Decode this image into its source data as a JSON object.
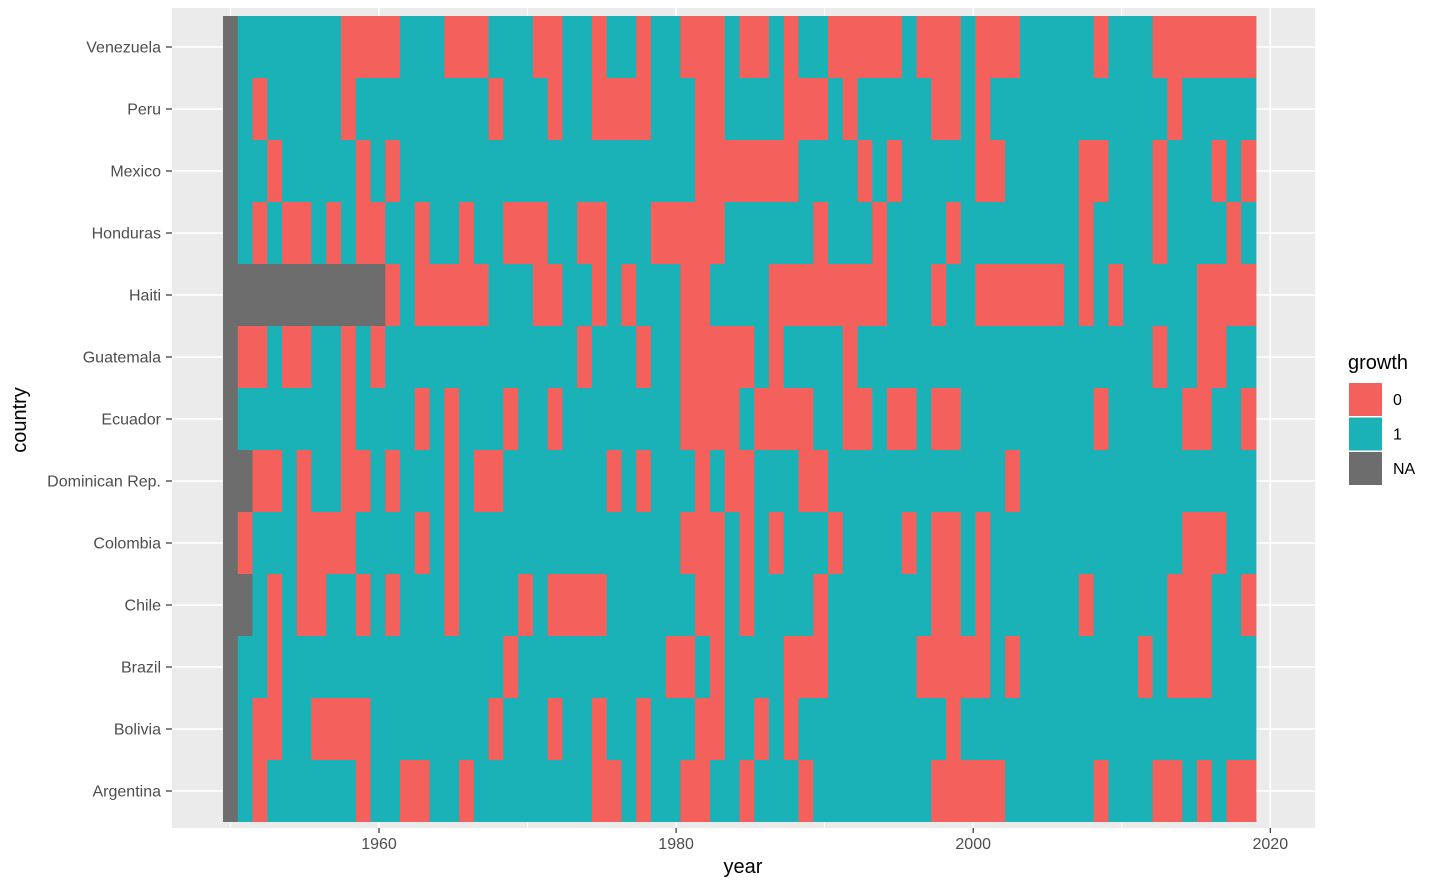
{
  "chart_data": {
    "type": "heatmap",
    "title": "",
    "xlabel": "year",
    "ylabel": "country",
    "x_start": 1950,
    "x_end": 2019,
    "xlim": [
      1947,
      2025
    ],
    "x_ticks": [
      1960,
      1980,
      2000,
      2020
    ],
    "x_tick_labels": [
      "1960",
      "1980",
      "2000",
      "2020"
    ],
    "grid": true,
    "legend": {
      "title": "growth",
      "placement": "right",
      "entries": [
        {
          "code": "0",
          "label": "0",
          "color": "#F4605B"
        },
        {
          "code": "1",
          "label": "1",
          "color": "#1AB2B7"
        },
        {
          "code": "N",
          "label": "NA",
          "color": "#6D6D6D"
        }
      ]
    },
    "value_encoding_note_codes": {
      "0": "0",
      "1": "1",
      "N": "NA"
    },
    "rows": [
      {
        "country": "Venezuela",
        "values": "N 1111111 0000 111 000 111 00 11 0 11 0 11 000 1 00 1 0 11 00000 1 000 1 000 11111 0 111 0000000"
      },
      {
        "country": "Peru",
        "values": "N 1 0 11111 0 111111111 0 111 0 11 0000 111 00 1 111 000 1 0 11111 00 1 0 111111111111 0 11111"
      },
      {
        "country": "Mexico",
        "values": "N 11 0 11111 0 1 0 11111111111111111111 000 0000 1111 0 1 0 11111 00 11111 00 111 0 111 0 1 0"
      },
      {
        "country": "Honduras",
        "values": "N 1 0 1 00 1 0 1 00 11 0 11 0 11 000 11 00 111 00000 1 11111 0 111 0 1111 0 11111111 0 1111 0 1111 0 1"
      },
      {
        "country": "Haiti",
        "values": "NNNNNNNNNNN 0 1 00000 111 00 11 0 1 0 111 00 11 11 00000000 111 0 11 000000 1 0 1 0 11111 0000"
      },
      {
        "country": "Guatemala",
        "values": "N 00 1 00 11 0 1 0 1111111111111 0 111 0 11 0000 0 1 0 1111 0 11111111111111111111 0 11 00 11"
      },
      {
        "country": "Ecuador",
        "values": "N 1111111 0 1111 0 1 0 111 0 11 0 11111111 0000 1 0000 11 00 1 00 1 00 111111111 0 11111 00 11 0"
      },
      {
        "country": "Dominican Rep.",
        "values": "NN 00 1 0 11 00 1 0 111 0 1 00 1111111 0 1 0 111 0 1 0 0 111 00 111111111111 0 1111111111111111"
      },
      {
        "country": "Colombia",
        "values": "N 0 111 0000 1111 0 1 0 111111111111111 000 1 0 1 0 111 0 1111 0 1 00 1 0 1111111111111 000 11"
      },
      {
        "country": "Chile",
        "values": "NN 1 0 1 00 11 0 1 0 111 0 1111 0 1 0000 111111 00 1 0 1111 0 1111111 00 1 0 111111 0 11111 000 11 0"
      },
      {
        "country": "Brazil",
        "values": "N 11 0 111111111111111 0 1111111111 00 1 0 1 111 000 111111 00000 1 0 11111111 0 1 000 111"
      },
      {
        "country": "Bolivia",
        "values": "N 1 00 11 0000 11111111 0 111 0 11 0 11 0 111 00 1 1 0 1 0 1111111111 0 11111111111111111111"
      },
      {
        "country": "Argentina",
        "values": "N 1 0 111111 0 11 00 11 0 11111111 00 1 0 11 00 11 0 111 0 11111111 00000 111111 0 111 00 1 0 1 00"
      }
    ]
  },
  "colors": {
    "panel_bg": "#EBEBEB",
    "grid": "#FFFFFF",
    "axis_text": "#4D4D4D"
  }
}
